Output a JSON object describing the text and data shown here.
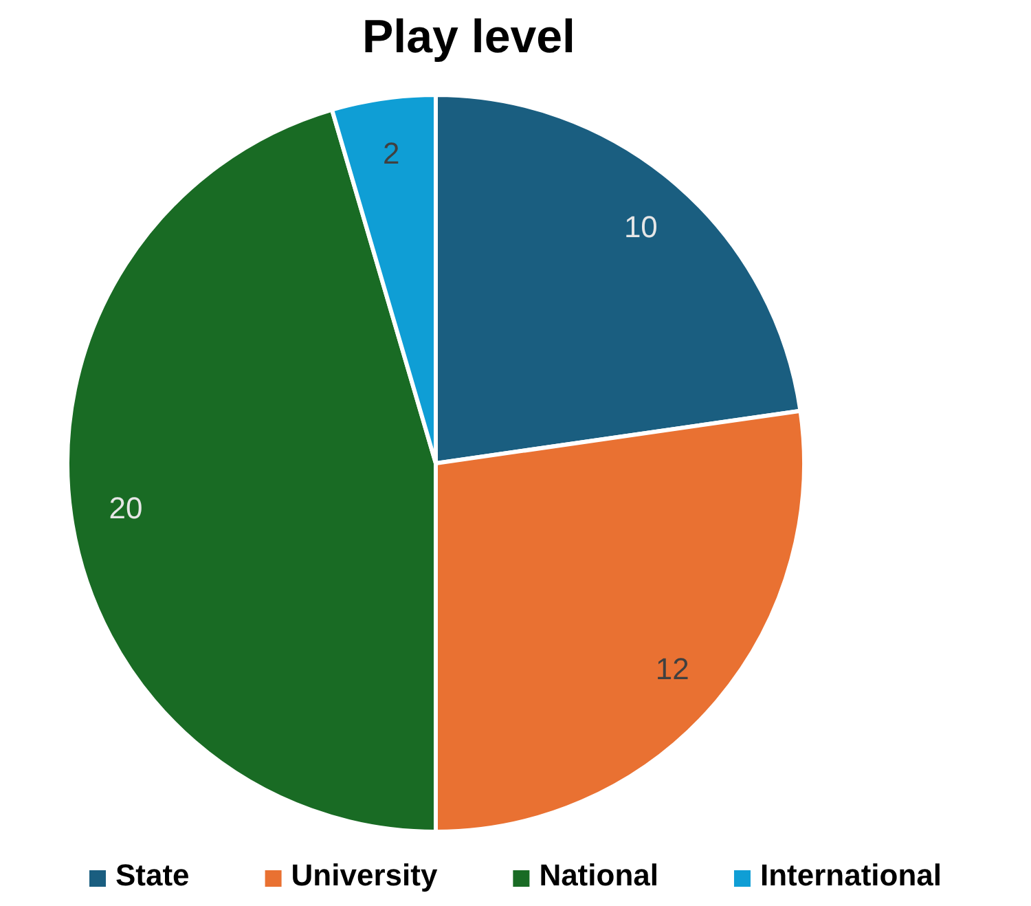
{
  "chart_data": {
    "type": "pie",
    "title": "Play level",
    "categories": [
      "State",
      "University",
      "National",
      "International"
    ],
    "values": [
      10,
      12,
      20,
      2
    ],
    "colors": [
      "#1a5e80",
      "#e97132",
      "#196b24",
      "#0f9ed5"
    ],
    "data_labels": true,
    "legend": "bottom"
  }
}
